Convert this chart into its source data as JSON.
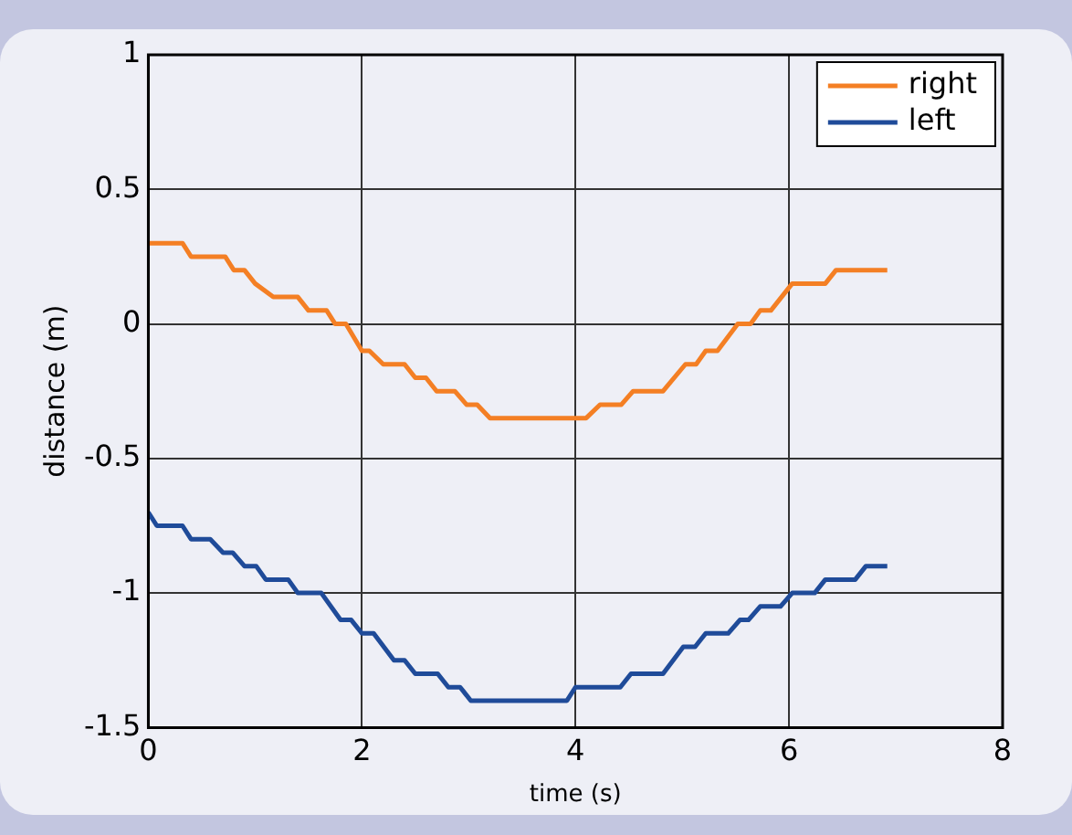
{
  "chart_data": {
    "type": "line",
    "xlabel": "time (s)",
    "ylabel": "distance (m)",
    "xlim": [
      0,
      8
    ],
    "xticks": [
      0,
      2,
      4,
      6,
      8
    ],
    "ylim": [
      -1.5,
      1
    ],
    "yticks": [
      -1.5,
      -1,
      -0.5,
      0,
      0.5,
      1
    ],
    "grid": true,
    "legend": "top right",
    "marker": "none",
    "line_style": "solid",
    "series": [
      {
        "name": "right",
        "color": "#f47f24",
        "x": [
          0,
          0.32,
          0.4,
          0.72,
          0.8,
          0.9,
          1.0,
          1.17,
          1.4,
          1.5,
          1.67,
          1.75,
          1.85,
          2.0,
          2.07,
          2.2,
          2.4,
          2.5,
          2.6,
          2.7,
          2.87,
          2.98,
          3.08,
          3.2,
          4.1,
          4.23,
          4.43,
          4.54,
          4.82,
          5.03,
          5.13,
          5.22,
          5.33,
          5.52,
          5.64,
          5.73,
          5.83,
          6.03,
          6.34,
          6.44,
          6.92
        ],
        "values": [
          0.3,
          0.3,
          0.25,
          0.25,
          0.2,
          0.2,
          0.15,
          0.1,
          0.1,
          0.05,
          0.05,
          0,
          0,
          -0.1,
          -0.1,
          -0.15,
          -0.15,
          -0.2,
          -0.2,
          -0.25,
          -0.25,
          -0.3,
          -0.3,
          -0.35,
          -0.35,
          -0.3,
          -0.3,
          -0.25,
          -0.25,
          -0.15,
          -0.15,
          -0.1,
          -0.1,
          0,
          0,
          0.05,
          0.05,
          0.15,
          0.15,
          0.2,
          0.2
        ]
      },
      {
        "name": "left",
        "color": "#1f4b99",
        "x": [
          0,
          0.08,
          0.32,
          0.4,
          0.58,
          0.7,
          0.79,
          0.9,
          1.01,
          1.1,
          1.31,
          1.4,
          1.62,
          1.8,
          1.9,
          2.0,
          2.11,
          2.3,
          2.4,
          2.5,
          2.71,
          2.81,
          2.92,
          3.02,
          3.92,
          4.0,
          4.42,
          4.52,
          4.82,
          5.01,
          5.12,
          5.22,
          5.43,
          5.54,
          5.62,
          5.73,
          5.92,
          6.03,
          6.24,
          6.34,
          6.62,
          6.72,
          6.92
        ],
        "values": [
          -0.7,
          -0.75,
          -0.75,
          -0.8,
          -0.8,
          -0.85,
          -0.85,
          -0.9,
          -0.9,
          -0.95,
          -0.95,
          -1.0,
          -1.0,
          -1.1,
          -1.1,
          -1.15,
          -1.15,
          -1.25,
          -1.25,
          -1.3,
          -1.3,
          -1.35,
          -1.35,
          -1.4,
          -1.4,
          -1.35,
          -1.35,
          -1.3,
          -1.3,
          -1.2,
          -1.2,
          -1.15,
          -1.15,
          -1.1,
          -1.1,
          -1.05,
          -1.05,
          -1.0,
          -1.0,
          -0.95,
          -0.95,
          -0.9,
          -0.9
        ]
      }
    ]
  }
}
